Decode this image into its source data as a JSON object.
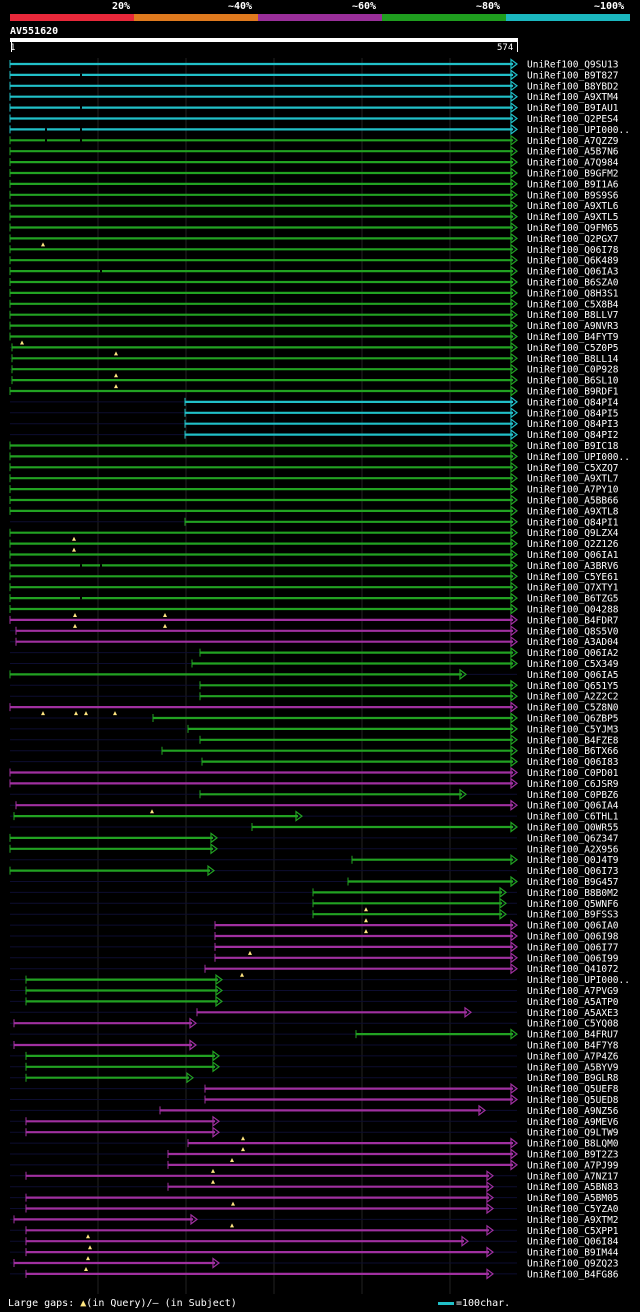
{
  "legend": {
    "labels": [
      "20%",
      "~40%",
      "~60%",
      "~80%",
      "~100%"
    ],
    "colors": [
      "#e8283a",
      "#e07a1e",
      "#9a2f9a",
      "#1f9e1f",
      "#1bb8c0"
    ]
  },
  "query": {
    "name": "AV551620",
    "start": "1",
    "end": "574"
  },
  "colors": {
    "cyan": "#21c0c8",
    "green": "#22a222",
    "magenta": "#a030a0",
    "background": "#000000",
    "gap_marker": "#ffe680"
  },
  "hits": [
    "UniRef100_Q9SU13",
    "UniRef100_B9T827",
    "UniRef100_B8YBD2",
    "UniRef100_A9XTM4",
    "UniRef100_B9IAU1",
    "UniRef100_Q2PES4",
    "UniRef100_UPI000..",
    "UniRef100_A7QZZ9",
    "UniRef100_A5B7N6",
    "UniRef100_A7Q984",
    "UniRef100_B9GFM2",
    "UniRef100_B9I1A6",
    "UniRef100_B9S9S6",
    "UniRef100_A9XTL6",
    "UniRef100_A9XTL5",
    "UniRef100_Q9FM65",
    "UniRef100_Q2PGX7",
    "UniRef100_Q06I78",
    "UniRef100_Q6K489",
    "UniRef100_Q06IA3",
    "UniRef100_B6SZA0",
    "UniRef100_Q8H3S1",
    "UniRef100_C5X8B4",
    "UniRef100_B8LLV7",
    "UniRef100_A9NVR3",
    "UniRef100_B4FYT9",
    "UniRef100_C5Z0P5",
    "UniRef100_B8LL14",
    "UniRef100_C0P928",
    "UniRef100_B6SL10",
    "UniRef100_B9RDF1",
    "UniRef100_Q84PI4",
    "UniRef100_Q84PI5",
    "UniRef100_Q84PI3",
    "UniRef100_Q84PI2",
    "UniRef100_B9IC18",
    "UniRef100_UPI000..",
    "UniRef100_C5XZQ7",
    "UniRef100_A9XTL7",
    "UniRef100_A7PY10",
    "UniRef100_A5BB66",
    "UniRef100_A9XTL8",
    "UniRef100_Q84PI1",
    "UniRef100_Q9LZX4",
    "UniRef100_Q2Z126",
    "UniRef100_Q06IA1",
    "UniRef100_A3BRV6",
    "UniRef100_C5YE61",
    "UniRef100_Q7XTY1",
    "UniRef100_B6TZG5",
    "UniRef100_Q04288",
    "UniRef100_B4FDR7",
    "UniRef100_Q8S5V0",
    "UniRef100_A3AD04",
    "UniRef100_Q06IA2",
    "UniRef100_C5X349",
    "UniRef100_Q06IA5",
    "UniRef100_Q651Y5",
    "UniRef100_A2Z2C2",
    "UniRef100_C5Z8N0",
    "UniRef100_Q6ZBP5",
    "UniRef100_C5YJM3",
    "UniRef100_B4FZE8",
    "UniRef100_B6TX66",
    "UniRef100_Q06I83",
    "UniRef100_C0PD01",
    "UniRef100_C6JSR9",
    "UniRef100_C0PBZ6",
    "UniRef100_Q06IA4",
    "UniRef100_C6THL1",
    "UniRef100_Q0WR55",
    "UniRef100_Q6Z347",
    "UniRef100_A2X956",
    "UniRef100_Q0J4T9",
    "UniRef100_Q06I73",
    "UniRef100_B9G457",
    "UniRef100_B8B0M2",
    "UniRef100_Q5WNF6",
    "UniRef100_B9FSS3",
    "UniRef100_Q06IA0",
    "UniRef100_Q06I98",
    "UniRef100_Q06I77",
    "UniRef100_Q06I99",
    "UniRef100_Q41072",
    "UniRef100_UPI000..",
    "UniRef100_A7PVG9",
    "UniRef100_A5ATP0",
    "UniRef100_A5AXE3",
    "UniRef100_C5YQ08",
    "UniRef100_B4FRU7",
    "UniRef100_B4F7Y8",
    "UniRef100_A7P4Z6",
    "UniRef100_A5BYV9",
    "UniRef100_B9GLR8",
    "UniRef100_Q5UEF8",
    "UniRef100_Q5UED8",
    "UniRef100_A9NZ56",
    "UniRef100_A9MEV6",
    "UniRef100_Q9LTW9",
    "UniRef100_B8LQM0",
    "UniRef100_B9T2Z3",
    "UniRef100_A7PJ99",
    "UniRef100_A7NZ17",
    "UniRef100_A5BN83",
    "UniRef100_A5BM05",
    "UniRef100_C5YZA0",
    "UniRef100_A9XTM2",
    "UniRef100_C5XPP1",
    "UniRef100_Q06I84",
    "UniRef100_B9IM44",
    "UniRef100_Q9ZQ23",
    "UniRef100_B4FG86"
  ],
  "footer": {
    "gaps_prefix": "Large gaps:",
    "gaps_query": "(in Query)/",
    "gaps_subject": "– (in Subject)",
    "scale_label": "=100char."
  }
}
